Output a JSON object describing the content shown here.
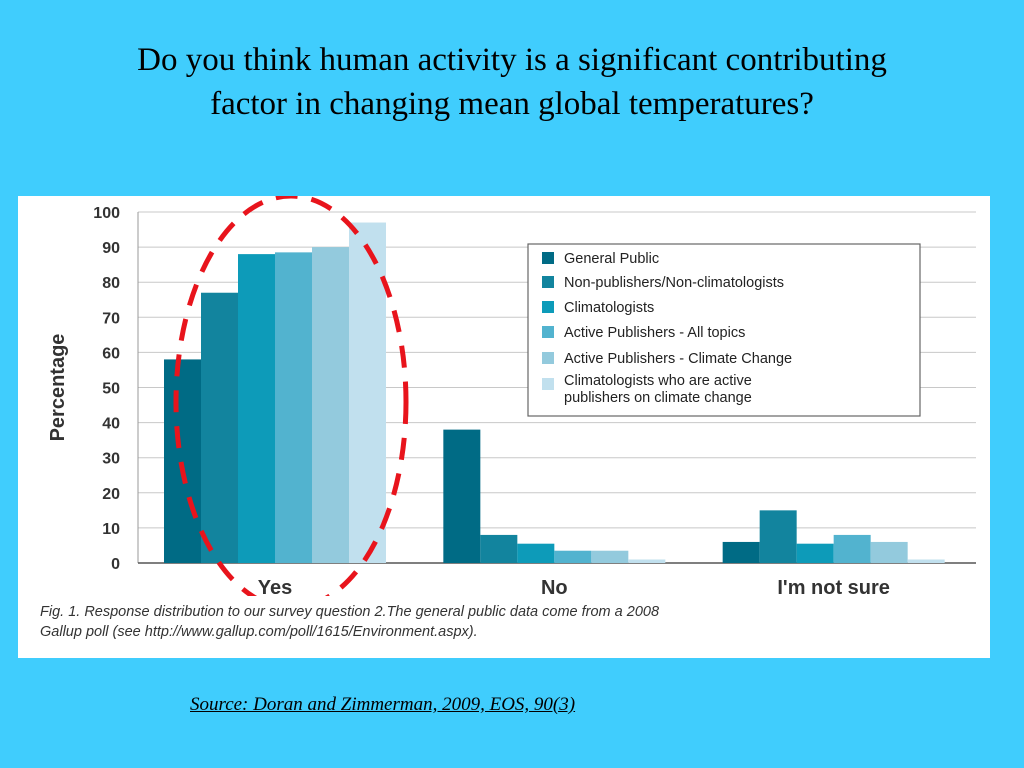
{
  "slide": {
    "title": "Do you think human activity is a significant contributing factor in changing mean global temperatures?",
    "source": "Source: Doran and Zimmerman, 2009, EOS,  90(3)"
  },
  "figure": {
    "caption_line1": "Fig. 1. Response distribution to our survey question 2.The general public data come from a 2008",
    "caption_line2": "Gallup poll (see http://www.gallup.com/poll/1615/Environment.aspx).",
    "highlight_color": "#e8141c"
  },
  "chart_data": {
    "type": "bar",
    "ylabel": "Percentage",
    "xlabel": "",
    "ylim": [
      0,
      100
    ],
    "yticks": [
      0,
      10,
      20,
      30,
      40,
      50,
      60,
      70,
      80,
      90,
      100
    ],
    "grid": true,
    "legend_position": "top-right",
    "categories": [
      "Yes",
      "No",
      "I'm not sure"
    ],
    "series": [
      {
        "name": "General Public",
        "color": "#006b85",
        "values": [
          58,
          38,
          6
        ]
      },
      {
        "name": "Non-publishers/Non-climatologists",
        "color": "#12849e",
        "values": [
          77,
          8,
          15
        ]
      },
      {
        "name": "Climatologists",
        "color": "#0d9bb9",
        "values": [
          88,
          5.5,
          5.5
        ]
      },
      {
        "name": "Active Publishers - All topics",
        "color": "#52b3cf",
        "values": [
          88.5,
          3.5,
          8
        ]
      },
      {
        "name": "Active Publishers - Climate Change",
        "color": "#93cadd",
        "values": [
          90,
          3.5,
          6
        ]
      },
      {
        "name": "Climatologists who are active publishers on climate change",
        "color": "#c1e0ee",
        "values": [
          97,
          1,
          1
        ]
      }
    ]
  }
}
